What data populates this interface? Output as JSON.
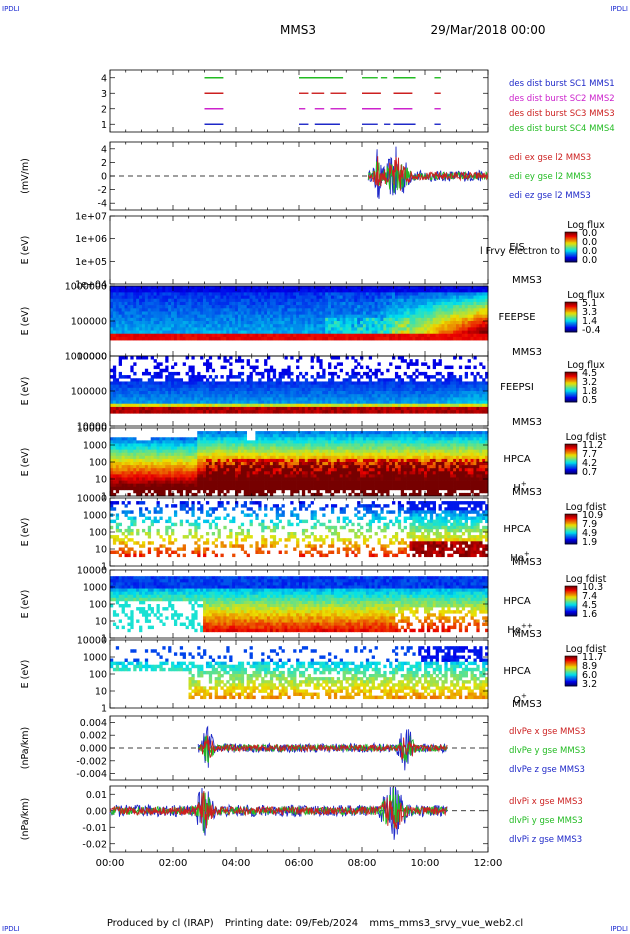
{
  "header": {
    "mission": "MMS3",
    "datetime": "29/Mar/2018 00:00",
    "corner_label": "IPDLI"
  },
  "footer": {
    "produced_by": "Produced by cl (IRAP)",
    "printing_date": "Printing date: 09/Feb/2024",
    "script_name": "mms_mms3_srvy_vue_web2.cl"
  },
  "colors": {
    "blue": "#1e28c8",
    "red": "#cc1f1f",
    "green": "#28c828",
    "magenta": "#cc22cc",
    "label_blue": "#1c2bd1"
  },
  "chart_data": [
    {
      "id": "burst",
      "type": "line",
      "ylabel": "",
      "ylim": [
        0.5,
        4.5
      ],
      "ticks": [
        "1",
        "2",
        "3",
        "4"
      ],
      "tick_values": [
        1,
        2,
        3,
        4
      ],
      "series": [
        {
          "name": "des dist burst SC1 MMS1",
          "color": "#2233cc",
          "y": 4,
          "color_hint": "green",
          "intervals": [
            [
              3.0,
              3.6
            ],
            [
              6.0,
              7.4
            ],
            [
              8.0,
              8.5
            ],
            [
              8.6,
              8.8
            ],
            [
              9.0,
              9.7
            ],
            [
              10.3,
              10.5
            ]
          ]
        },
        {
          "name": "des dist burst SC2 MMS2",
          "color": "#cc22cc",
          "y": 3,
          "intervals": [
            [
              3.0,
              3.6
            ],
            [
              6.0,
              6.3
            ],
            [
              6.4,
              6.8
            ],
            [
              7.0,
              7.5
            ],
            [
              8.0,
              8.6
            ],
            [
              9.0,
              9.6
            ],
            [
              10.3,
              10.5
            ]
          ]
        },
        {
          "name": "des dist burst SC3 MMS3",
          "color": "#cc1f1f",
          "y": 2,
          "intervals": [
            [
              3.0,
              3.6
            ],
            [
              6.0,
              6.2
            ],
            [
              6.5,
              6.8
            ],
            [
              7.0,
              7.5
            ],
            [
              8.0,
              8.6
            ],
            [
              9.0,
              9.6
            ],
            [
              10.3,
              10.5
            ]
          ]
        },
        {
          "name": "des dist burst SC4 MMS4",
          "color": "#22bb22",
          "y": 1,
          "intervals": [
            [
              3.0,
              3.6
            ],
            [
              6.0,
              6.3
            ],
            [
              6.5,
              7.3
            ],
            [
              8.0,
              8.5
            ],
            [
              8.7,
              8.9
            ],
            [
              9.0,
              9.7
            ],
            [
              10.3,
              10.5
            ]
          ]
        }
      ]
    },
    {
      "id": "edi",
      "type": "line",
      "ylabel": "(mV/m)",
      "ylim": [
        -5,
        5
      ],
      "ticks": [
        "4",
        "2",
        "0",
        "-2",
        "-4"
      ],
      "tick_values": [
        4,
        2,
        0,
        -2,
        -4
      ],
      "zero_line": true,
      "series": [
        {
          "name": "edi ex gse l2 MMS3",
          "color": "#cc1f1f"
        },
        {
          "name": "edi ey gse l2 MMS3",
          "color": "#22bb22"
        },
        {
          "name": "edi ez gse l2 MMS3",
          "color": "#1e28c8"
        }
      ],
      "active_range": [
        8.2,
        12.0
      ],
      "peak_amplitude": 4.5
    },
    {
      "id": "eis",
      "type": "heatmap",
      "ylabel": "E (eV)",
      "ticks": [
        "1e+07",
        "1e+06",
        "1e+05",
        "1e+04"
      ],
      "instrument": "EIS",
      "overlay_text": "l Frvy electron to",
      "sc": "MMS3",
      "colorbar_title": "Log flux",
      "colorbar_values": [
        "0.0",
        "0.0",
        "0.0",
        "0.0"
      ],
      "empty": true
    },
    {
      "id": "feepse",
      "type": "heatmap",
      "ylabel": "E (eV)",
      "ticks": [
        "1000000",
        "100000",
        "10000"
      ],
      "instrument": "FEEPSE",
      "sc": "MMS3",
      "colorbar_title": "Log flux",
      "colorbar_values": [
        "5.1",
        "3.3",
        "1.4",
        "-0.4"
      ]
    },
    {
      "id": "feepsi",
      "type": "heatmap",
      "ylabel": "E (eV)",
      "ticks": [
        "1000000",
        "100000",
        "10000"
      ],
      "instrument": "FEEPSI",
      "sc": "MMS3",
      "colorbar_title": "Log flux",
      "colorbar_values": [
        "4.5",
        "3.2",
        "1.8",
        "0.5"
      ]
    },
    {
      "id": "hpca_h",
      "type": "heatmap",
      "ylabel": "E (eV)",
      "ticks": [
        "10000",
        "1000",
        "100",
        "10",
        "1"
      ],
      "instrument": "HPCA",
      "sc": "MMS3",
      "species": "H",
      "species_sup": "+",
      "colorbar_title": "Log fdist",
      "colorbar_values": [
        "11.2",
        "7.7",
        "4.2",
        "0.7"
      ]
    },
    {
      "id": "hpca_he",
      "type": "heatmap",
      "ylabel": "E (eV)",
      "ticks": [
        "10000",
        "1000",
        "100",
        "10",
        "1"
      ],
      "instrument": "HPCA",
      "sc": "MMS3",
      "species": "He",
      "species_sup": "+",
      "colorbar_title": "Log fdist",
      "colorbar_values": [
        "10.9",
        "7.9",
        "4.9",
        "1.9"
      ]
    },
    {
      "id": "hpca_hepp",
      "type": "heatmap",
      "ylabel": "E (eV)",
      "ticks": [
        "10000",
        "1000",
        "100",
        "10",
        "1"
      ],
      "instrument": "HPCA",
      "sc": "MMS3",
      "species": "He",
      "species_sup": "++",
      "colorbar_title": "Log fdist",
      "colorbar_values": [
        "10.3",
        "7.4",
        "4.5",
        "1.6"
      ]
    },
    {
      "id": "hpca_o",
      "type": "heatmap",
      "ylabel": "E (eV)",
      "ticks": [
        "10000",
        "1000",
        "100",
        "10",
        "1"
      ],
      "instrument": "HPCA",
      "sc": "MMS3",
      "species": "O",
      "species_sup": "+",
      "colorbar_title": "Log fdist",
      "colorbar_values": [
        "11.7",
        "8.9",
        "6.0",
        "3.2"
      ]
    },
    {
      "id": "dlvpe",
      "type": "line",
      "ylabel": "(nPa/km)",
      "ylim": [
        -0.005,
        0.005
      ],
      "ticks": [
        "0.004",
        "0.002",
        "0.000",
        "-0.002",
        "-0.004"
      ],
      "tick_values": [
        0.004,
        0.002,
        0.0,
        -0.002,
        -0.004
      ],
      "zero_line": true,
      "series": [
        {
          "name": "dlvPe x gse MMS3",
          "color": "#cc1f1f"
        },
        {
          "name": "dlvPe y gse MMS3",
          "color": "#22bb22"
        },
        {
          "name": "dlvPe z gse MMS3",
          "color": "#1e28c8"
        }
      ],
      "active_range": [
        2.8,
        10.7
      ],
      "peak_amplitude": 0.004
    },
    {
      "id": "dlvpi",
      "type": "line",
      "ylabel": "(nPa/km)",
      "ylim": [
        -0.025,
        0.015
      ],
      "ticks": [
        "0.01",
        "0.00",
        "-0.01",
        "-0.02"
      ],
      "tick_values": [
        0.01,
        0.0,
        -0.01,
        -0.02
      ],
      "zero_line": true,
      "series": [
        {
          "name": "dlvPi x gse MMS3",
          "color": "#cc1f1f"
        },
        {
          "name": "dlvPi y gse MMS3",
          "color": "#22bb22"
        },
        {
          "name": "dlvPi z gse MMS3",
          "color": "#1e28c8"
        }
      ],
      "active_range": [
        0.0,
        10.7
      ],
      "peak_amplitude": 0.02
    }
  ],
  "x_axis": {
    "ticks": [
      "00:00",
      "02:00",
      "04:00",
      "06:00",
      "08:00",
      "10:00",
      "12:00"
    ],
    "tick_hours": [
      0,
      2,
      4,
      6,
      8,
      10,
      12
    ],
    "range": [
      0,
      12
    ]
  }
}
